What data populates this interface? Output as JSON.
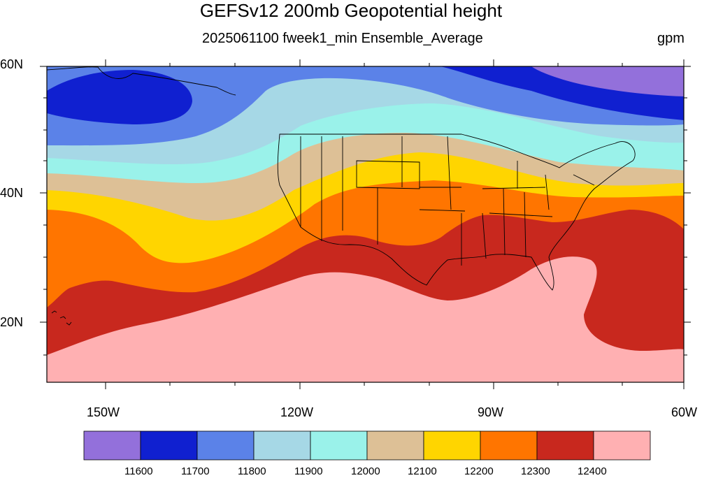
{
  "title": "GEFSv12 200mb Geopotential height",
  "subtitle": "2025061100 fweek1_min Ensemble_Average",
  "units": "gpm",
  "map": {
    "lat_labels": [
      "60N",
      "40N",
      "20N"
    ],
    "lon_labels": [
      "150W",
      "120W",
      "90W",
      "60W"
    ],
    "extent": {
      "lon_min": -159,
      "lon_max": -60,
      "lat_min": 10,
      "lat_max": 60
    },
    "projection": "cylindrical equidistant"
  },
  "colorbar": {
    "levels": [
      "11600",
      "11700",
      "11800",
      "11900",
      "12000",
      "12100",
      "12200",
      "12300",
      "12400"
    ],
    "colors": [
      "#9370db",
      "#1020d0",
      "#5b82e8",
      "#a6d8e6",
      "#9af2ea",
      "#ddc096",
      "#ffd500",
      "#ff7500",
      "#c8281e",
      "#ffb0b2"
    ]
  }
}
